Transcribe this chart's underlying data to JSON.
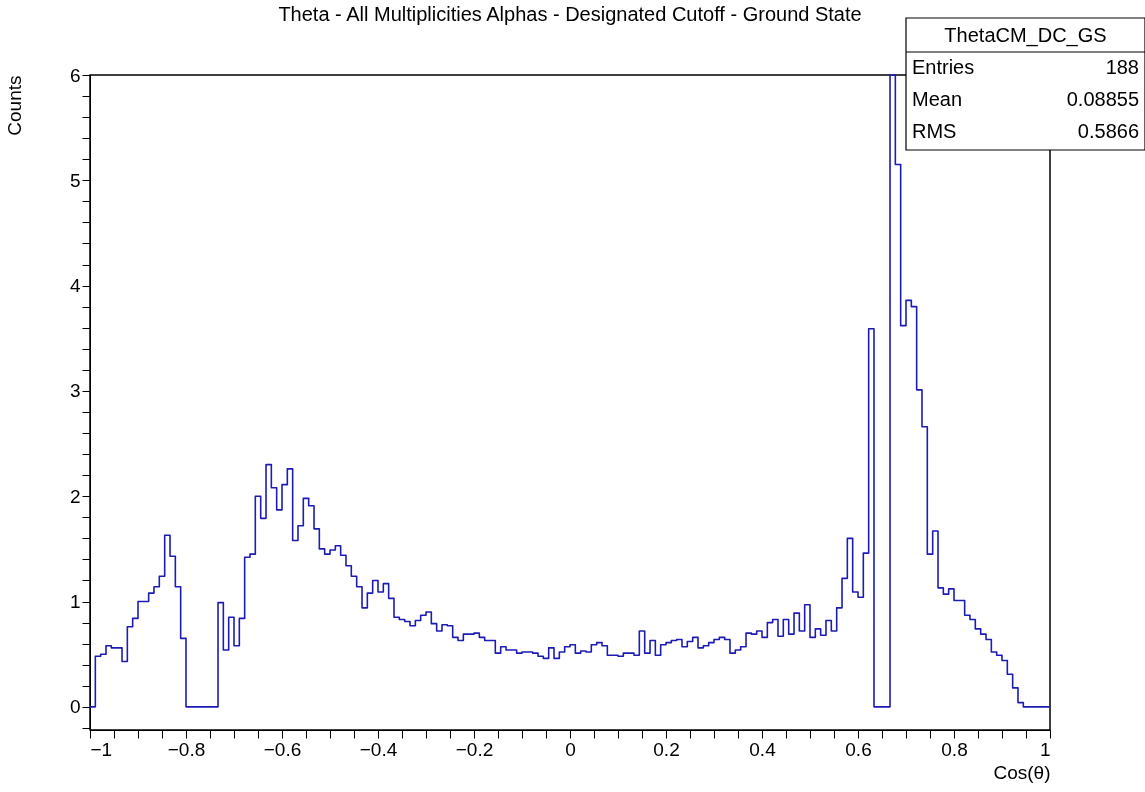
{
  "chart_data": {
    "type": "histogram",
    "title": "Theta - All Multiplicities Alphas - Designated Cutoff - Ground State",
    "xlabel": "Cos(θ)",
    "ylabel": "Counts",
    "color": "#1c1cb4",
    "grid": false,
    "xlim": [
      -1,
      1
    ],
    "ylim": [
      -0.22,
      6
    ],
    "xticks": [
      -1,
      {
        "value": -0.95,
        "label": null
      },
      {
        "value": -0.9,
        "label": null
      },
      {
        "value": -0.85,
        "label": null
      },
      -0.8,
      {
        "value": -0.75,
        "label": null
      },
      {
        "value": -0.7,
        "label": null
      },
      {
        "value": -0.65,
        "label": null
      },
      -0.6,
      {
        "value": -0.55,
        "label": null
      },
      {
        "value": -0.5,
        "label": null
      },
      {
        "value": -0.45,
        "label": null
      },
      -0.4,
      {
        "value": -0.35,
        "label": null
      },
      {
        "value": -0.3,
        "label": null
      },
      {
        "value": -0.25,
        "label": null
      },
      -0.2,
      {
        "value": -0.15,
        "label": null
      },
      {
        "value": -0.1,
        "label": null
      },
      {
        "value": -0.05,
        "label": null
      },
      0,
      {
        "value": 0.05,
        "label": null
      },
      {
        "value": 0.1,
        "label": null
      },
      {
        "value": 0.15,
        "label": null
      },
      0.2,
      {
        "value": 0.25,
        "label": null
      },
      {
        "value": 0.3,
        "label": null
      },
      {
        "value": 0.35,
        "label": null
      },
      0.4,
      {
        "value": 0.45,
        "label": null
      },
      {
        "value": 0.5,
        "label": null
      },
      {
        "value": 0.55,
        "label": null
      },
      0.6,
      {
        "value": 0.65,
        "label": null
      },
      {
        "value": 0.7,
        "label": null
      },
      {
        "value": 0.75,
        "label": null
      },
      0.8,
      {
        "value": 0.85,
        "label": null
      },
      {
        "value": 0.9,
        "label": null
      },
      {
        "value": 0.95,
        "label": null
      },
      1
    ],
    "yticks": [
      {
        "value": -0.2,
        "label": null
      },
      0,
      {
        "value": 0.2,
        "label": null
      },
      {
        "value": 0.4,
        "label": null
      },
      {
        "value": 0.6,
        "label": null
      },
      {
        "value": 0.8,
        "label": null
      },
      1,
      {
        "value": 1.2,
        "label": null
      },
      {
        "value": 1.4,
        "label": null
      },
      {
        "value": 1.6,
        "label": null
      },
      {
        "value": 1.8,
        "label": null
      },
      2,
      {
        "value": 2.2,
        "label": null
      },
      {
        "value": 2.4,
        "label": null
      },
      {
        "value": 2.6,
        "label": null
      },
      {
        "value": 2.8,
        "label": null
      },
      3,
      {
        "value": 3.2,
        "label": null
      },
      {
        "value": 3.4,
        "label": null
      },
      {
        "value": 3.6,
        "label": null
      },
      {
        "value": 3.8,
        "label": null
      },
      4,
      {
        "value": 4.2,
        "label": null
      },
      {
        "value": 4.4,
        "label": null
      },
      {
        "value": 4.6,
        "label": null
      },
      {
        "value": 4.8,
        "label": null
      },
      5,
      {
        "value": 5.2,
        "label": null
      },
      {
        "value": 5.4,
        "label": null
      },
      {
        "value": 5.6,
        "label": null
      },
      {
        "value": 5.8,
        "label": null
      },
      6
    ],
    "bins": [
      -1,
      -0.9889,
      -0.9778,
      -0.9667,
      -0.9556,
      -0.9444,
      -0.9333,
      -0.9222,
      -0.9111,
      -0.9,
      -0.8889,
      -0.8778,
      -0.8667,
      -0.8556,
      -0.8444,
      -0.8333,
      -0.8222,
      -0.8111,
      -0.8,
      -0.7889,
      -0.7778,
      -0.7667,
      -0.7556,
      -0.7444,
      -0.7333,
      -0.7222,
      -0.7111,
      -0.7,
      -0.6889,
      -0.6778,
      -0.6667,
      -0.6556,
      -0.6444,
      -0.6333,
      -0.6222,
      -0.6111,
      -0.6,
      -0.5889,
      -0.5778,
      -0.5667,
      -0.5556,
      -0.5444,
      -0.5333,
      -0.5222,
      -0.5111,
      -0.5,
      -0.4889,
      -0.4778,
      -0.4667,
      -0.4556,
      -0.4444,
      -0.4333,
      -0.4222,
      -0.4111,
      -0.4,
      -0.3889,
      -0.3778,
      -0.3667,
      -0.3556,
      -0.3444,
      -0.3333,
      -0.3222,
      -0.3111,
      -0.3,
      -0.2889,
      -0.2778,
      -0.2667,
      -0.2556,
      -0.2444,
      -0.2333,
      -0.2222,
      -0.2111,
      -0.2,
      -0.1889,
      -0.1778,
      -0.1667,
      -0.1556,
      -0.1444,
      -0.1333,
      -0.1222,
      -0.1111,
      -0.1,
      -0.0889,
      -0.0778,
      -0.0667,
      -0.0556,
      -0.0444,
      -0.0333,
      -0.0222,
      -0.0111,
      0,
      0.0111,
      0.0222,
      0.0333,
      0.0444,
      0.0556,
      0.0667,
      0.0778,
      0.0889,
      0.1,
      0.1111,
      0.1222,
      0.1333,
      0.1444,
      0.1556,
      0.1667,
      0.1778,
      0.1889,
      0.2,
      0.2111,
      0.2222,
      0.2333,
      0.2444,
      0.2556,
      0.2667,
      0.2778,
      0.2889,
      0.3,
      0.3111,
      0.3222,
      0.3333,
      0.3444,
      0.3556,
      0.3667,
      0.3778,
      0.3889,
      0.4,
      0.4111,
      0.4222,
      0.4333,
      0.4444,
      0.4556,
      0.4667,
      0.4778,
      0.4889,
      0.5,
      0.5111,
      0.5222,
      0.5333,
      0.5444,
      0.5556,
      0.5667,
      0.5778,
      0.5889,
      0.6,
      0.6111,
      0.6222,
      0.6333,
      0.6444,
      0.6556,
      0.6667,
      0.6778,
      0.6889,
      0.7,
      0.7111,
      0.7222,
      0.7333,
      0.7444,
      0.7556,
      0.7667,
      0.7778,
      0.7889,
      0.8,
      0.8111,
      0.8222,
      0.8333,
      0.8444,
      0.8556,
      0.8667,
      0.8778,
      0.8889,
      0.9,
      0.9111,
      0.9222,
      0.9333,
      0.9444,
      0.9556,
      0.9667,
      0.9778,
      0.9889,
      1
    ],
    "values": [
      0,
      0.48,
      0.5,
      0.58,
      0.56,
      0.56,
      0.43,
      0.76,
      0.84,
      1.0,
      1.0,
      1.08,
      1.14,
      1.24,
      1.63,
      1.43,
      1.14,
      0.65,
      0,
      0,
      0,
      0,
      0,
      0,
      0.99,
      0.54,
      0.85,
      0.58,
      0.84,
      1.42,
      1.45,
      2.0,
      1.79,
      2.3,
      2.08,
      1.87,
      2.11,
      2.26,
      1.58,
      1.72,
      1.98,
      1.91,
      1.69,
      1.5,
      1.45,
      1.49,
      1.53,
      1.44,
      1.34,
      1.24,
      1.14,
      0.94,
      1.08,
      1.2,
      1.09,
      1.17,
      1.03,
      0.85,
      0.83,
      0.81,
      0.77,
      0.82,
      0.87,
      0.9,
      0.79,
      0.72,
      0.78,
      0.77,
      0.66,
      0.63,
      0.69,
      0.69,
      0.7,
      0.66,
      0.63,
      0.63,
      0.51,
      0.57,
      0.54,
      0.54,
      0.51,
      0.52,
      0.52,
      0.51,
      0.48,
      0.46,
      0.56,
      0.46,
      0.52,
      0.57,
      0.59,
      0.51,
      0.53,
      0.52,
      0.59,
      0.61,
      0.58,
      0.49,
      0.49,
      0.48,
      0.51,
      0.51,
      0.49,
      0.72,
      0.51,
      0.63,
      0.49,
      0.59,
      0.61,
      0.63,
      0.64,
      0.57,
      0.62,
      0.66,
      0.56,
      0.58,
      0.61,
      0.64,
      0.66,
      0.64,
      0.51,
      0.54,
      0.57,
      0.7,
      0.69,
      0.72,
      0.66,
      0.8,
      0.83,
      0.67,
      0.83,
      0.69,
      0.89,
      0.72,
      0.97,
      0.66,
      0.74,
      0.68,
      0.82,
      0.72,
      0.94,
      1.22,
      1.6,
      1.09,
      1.04,
      1.46,
      3.59,
      0,
      0,
      0,
      6.0,
      5.15,
      3.62,
      3.86,
      3.8,
      3.01,
      2.66,
      1.45,
      1.67,
      1.13,
      1.07,
      1.12,
      1.01,
      1.01,
      0.87,
      0.83,
      0.74,
      0.69,
      0.64,
      0.52,
      0.49,
      0.44,
      0.31,
      0.18,
      0.04,
      0,
      0,
      0,
      0,
      0
    ],
    "annotations": [
      "ThetaCM_DC_GS",
      "Entries 188",
      "Mean 0.08855",
      "RMS 0.5866"
    ]
  }
}
